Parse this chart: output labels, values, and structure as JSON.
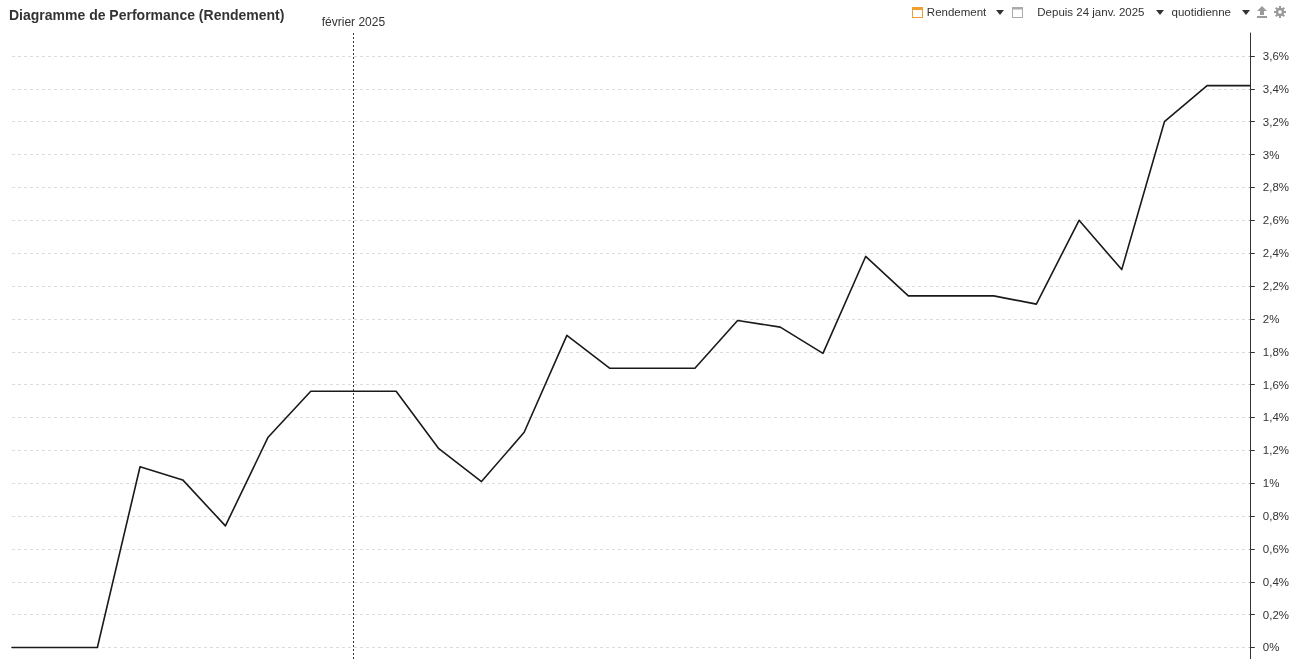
{
  "chart_data": {
    "type": "line",
    "title": "Diagramme de Performance (Rendement)",
    "annotations": [
      "Rendement",
      "Depuis 24 janv. 2025",
      "quotidienne"
    ],
    "categories": [
      null,
      null,
      null,
      null,
      null,
      null,
      null,
      null,
      "février 2025",
      null,
      null,
      null,
      null,
      null,
      null,
      null,
      null,
      null,
      null,
      null,
      null,
      null,
      null,
      null,
      null,
      null,
      null,
      null,
      null,
      null
    ],
    "values": [
      0,
      0,
      0,
      1.1,
      1.02,
      0.74,
      1.28,
      1.56,
      1.56,
      1.56,
      1.21,
      1.01,
      1.31,
      1.9,
      1.7,
      1.7,
      1.7,
      1.99,
      1.95,
      1.79,
      2.38,
      2.14,
      2.14,
      2.14,
      2.09,
      2.6,
      2.3,
      3.2,
      3.42,
      3.42
    ],
    "color": "#1a1a1a",
    "ylim": [
      -0.07,
      3.74
    ],
    "yticks": [
      {
        "value": 0,
        "label": "0%"
      },
      {
        "value": 0.2,
        "label": "0,2%"
      },
      {
        "value": 0.4,
        "label": "0,4%"
      },
      {
        "value": 0.6,
        "label": "0,6%"
      },
      {
        "value": 0.8,
        "label": "0,8%"
      },
      {
        "value": 1,
        "label": "1%"
      },
      {
        "value": 1.2,
        "label": "1,2%"
      },
      {
        "value": 1.4,
        "label": "1,4%"
      },
      {
        "value": 1.6,
        "label": "1,6%"
      },
      {
        "value": 1.8,
        "label": "1,8%"
      },
      {
        "value": 2,
        "label": "2%"
      },
      {
        "value": 2.2,
        "label": "2,2%"
      },
      {
        "value": 2.4,
        "label": "2,4%"
      },
      {
        "value": 2.6,
        "label": "2,6%"
      },
      {
        "value": 2.8,
        "label": "2,8%"
      },
      {
        "value": 3,
        "label": "3%"
      },
      {
        "value": 3.2,
        "label": "3,2%"
      },
      {
        "value": 3.4,
        "label": "3,4%"
      },
      {
        "value": 3.6,
        "label": "3,6%"
      }
    ],
    "ref_lines": [
      {
        "axis": "x",
        "value": "février 2025",
        "color": "#333333",
        "line_style": "dotted"
      }
    ],
    "grid": "y",
    "marker": "none",
    "line_style": "solid"
  }
}
